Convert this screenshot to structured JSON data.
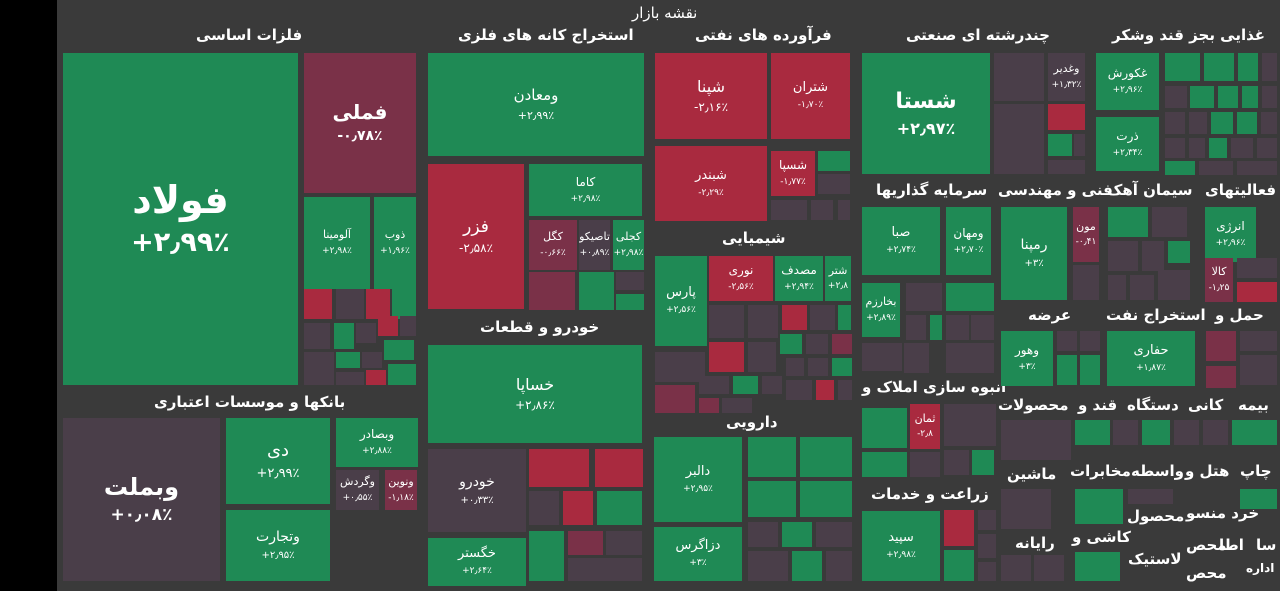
{
  "colors": {
    "green": "#1f8a55",
    "red": "#a92a3f",
    "dark": "#4a3e49",
    "darkred": "#7a3148",
    "background": "#3a3a3a"
  },
  "title": "نقشه بازار",
  "sections": [
    "فلزات اساسی",
    "استخراج کانه های فلزی",
    "فرآورده های نفتی",
    "چندرشته ای صنعتی",
    "غذایی بجز قند وشکر",
    "خودرو و قطعات",
    "شیمیایی",
    "سرمایه گذاریها",
    "فنی و مهندسی",
    "سیمان آهک",
    "فعالیتهای",
    "بانکها و موسسات اعتباری",
    "عرضه",
    "استخراج نفت",
    "حمل و",
    "انبوه سازی املاک و",
    "دارویی",
    "محصولات",
    "قند و",
    "دستگاه",
    "کانی",
    "بیمه",
    "زراعت و خدمات",
    "ماشین",
    "مخابرات",
    "واسطه",
    "هتل و",
    "چاپ",
    "محصول",
    "خرد منسو",
    "اطا",
    "سا",
    "محص",
    "رایانه",
    "کاشی و",
    "لاستیک",
    "محص",
    "اداره"
  ],
  "chart_data": {
    "type": "treemap",
    "title": "نقشه بازار",
    "tiles": [
      {
        "symbol": "فولاد",
        "change": "+۲٫۹۹٪",
        "value": 2.99,
        "sector": "فلزات اساسی"
      },
      {
        "symbol": "فملی",
        "change": "-۰٫۷۸٪",
        "value": -0.78,
        "sector": "فلزات اساسی"
      },
      {
        "symbol": "آلومینا",
        "change": "+۲٫۹۸٪",
        "value": 2.98,
        "sector": "فلزات اساسی"
      },
      {
        "symbol": "ذوب",
        "change": "+۱٫۹۶٪",
        "value": 1.96,
        "sector": "فلزات اساسی"
      },
      {
        "symbol": "ومعادن",
        "change": "+۲٫۹۹٪",
        "value": 2.99,
        "sector": "استخراج کانه های فلزی"
      },
      {
        "symbol": "فزر",
        "change": "-۲٫۵۸٪",
        "value": -2.58,
        "sector": "استخراج کانه های فلزی"
      },
      {
        "symbol": "کاما",
        "change": "+۲٫۹۸٪",
        "value": 2.98,
        "sector": "استخراج کانه های فلزی"
      },
      {
        "symbol": "کگل",
        "change": "-۰٫۶۶٪",
        "value": -0.66,
        "sector": "استخراج کانه های فلزی"
      },
      {
        "symbol": "تاصیکو",
        "change": "+۰٫۸۹٪",
        "value": 0.89,
        "sector": "استخراج کانه های فلزی"
      },
      {
        "symbol": "کجلی",
        "change": "+۲٫۹۸٪",
        "value": 2.98,
        "sector": "استخراج کانه های فلزی"
      },
      {
        "symbol": "شپنا",
        "change": "-۲٫۱۶٪",
        "value": -2.16,
        "sector": "فرآورده های نفتی"
      },
      {
        "symbol": "شتران",
        "change": "-۱٫۷۰٪",
        "value": -1.7,
        "sector": "فرآورده های نفتی"
      },
      {
        "symbol": "شبندر",
        "change": "-۲٫۲۹٪",
        "value": -2.29,
        "sector": "فرآورده های نفتی"
      },
      {
        "symbol": "شسپا",
        "change": "-۱٫۷۷٪",
        "value": -1.77,
        "sector": "فرآورده های نفتی"
      },
      {
        "symbol": "شستا",
        "change": "+۲٫۹۷٪",
        "value": 2.97,
        "sector": "چندرشته ای صنعتی"
      },
      {
        "symbol": "وغدیر",
        "change": "+۱٫۳۲٪",
        "value": 1.32,
        "sector": "چندرشته ای صنعتی"
      },
      {
        "symbol": "غکورش",
        "change": "+۲٫۹۶٪",
        "value": 2.96,
        "sector": "غذایی بجز قند وشکر"
      },
      {
        "symbol": "ذرت",
        "change": "+۲٫۳۴٪",
        "value": 2.34,
        "sector": "غذایی بجز قند وشکر"
      },
      {
        "symbol": "خساپا",
        "change": "+۲٫۸۶٪",
        "value": 2.86,
        "sector": "خودرو و قطعات"
      },
      {
        "symbol": "خودرو",
        "change": "+۰٫۳۳٪",
        "value": 0.33,
        "sector": "خودرو و قطعات"
      },
      {
        "symbol": "خگستر",
        "change": "+۲٫۶۴٪",
        "value": 2.64,
        "sector": "خودرو و قطعات"
      },
      {
        "symbol": "پارس",
        "change": "+۲٫۵۶٪",
        "value": 2.56,
        "sector": "شیمیایی"
      },
      {
        "symbol": "نوری",
        "change": "-۲٫۵۶٪",
        "value": -2.56,
        "sector": "شیمیایی"
      },
      {
        "symbol": "مصدف",
        "change": "+۲٫۹۴٪",
        "value": 2.94,
        "sector": "شیمیایی"
      },
      {
        "symbol": "شتر",
        "change": "+۲٫۸",
        "value": 2.8,
        "sector": "شیمیایی"
      },
      {
        "symbol": "صبا",
        "change": "+۲٫۷۴٪",
        "value": 2.74,
        "sector": "سرمایه گذاریها"
      },
      {
        "symbol": "ومهان",
        "change": "+۲٫۷۰٪",
        "value": 2.7,
        "sector": "سرمایه گذاریها"
      },
      {
        "symbol": "بخارزم",
        "change": "+۲٫۸۹٪",
        "value": 2.89,
        "sector": "سرمایه گذاریها"
      },
      {
        "symbol": "رمپنا",
        "change": "+۳٪",
        "value": 3.0,
        "sector": "فنی و مهندسی"
      },
      {
        "symbol": "مون",
        "change": "-۰٫۴۱",
        "value": -0.41,
        "sector": "فنی و مهندسی"
      },
      {
        "symbol": "انرژی",
        "change": "+۲٫۹۶٪",
        "value": 2.96,
        "sector": "فعالیتهای"
      },
      {
        "symbol": "کالا",
        "change": "-۱٫۲۵",
        "value": -1.25,
        "sector": "فعالیتهای"
      },
      {
        "symbol": "وبملت",
        "change": "+۰٫۰۸٪",
        "value": 0.08,
        "sector": "بانکها و موسسات اعتباری"
      },
      {
        "symbol": "دی",
        "change": "+۲٫۹۹٪",
        "value": 2.99,
        "sector": "بانکها و موسسات اعتباری"
      },
      {
        "symbol": "وتجارت",
        "change": "+۲٫۹۵٪",
        "value": 2.95,
        "sector": "بانکها و موسسات اعتباری"
      },
      {
        "symbol": "وبصادر",
        "change": "+۲٫۸۸٪",
        "value": 2.88,
        "sector": "بانکها و موسسات اعتباری"
      },
      {
        "symbol": "وگردش",
        "change": "+۰٫۵۵٪",
        "value": 0.55,
        "sector": "بانکها و موسسات اعتباری"
      },
      {
        "symbol": "ونوین",
        "change": "-۱٫۱۸٪",
        "value": -1.18,
        "sector": "بانکها و موسسات اعتباری"
      },
      {
        "symbol": "وهور",
        "change": "+۳٪",
        "value": 3.0,
        "sector": "عرضه"
      },
      {
        "symbol": "حفاری",
        "change": "+۱٫۸۷٪",
        "value": 1.87,
        "sector": "استخراج نفت"
      },
      {
        "symbol": "دالبر",
        "change": "+۲٫۹۵٪",
        "value": 2.95,
        "sector": "دارویی"
      },
      {
        "symbol": "دزاگرس",
        "change": "+۳٪",
        "value": 3.0,
        "sector": "دارویی"
      },
      {
        "symbol": "ثمان",
        "change": "-۲٫۸",
        "value": -2.8,
        "sector": "انبوه سازی املاک و"
      },
      {
        "symbol": "سپید",
        "change": "+۲٫۹۸٪",
        "value": 2.98,
        "sector": "زراعت و خدمات"
      }
    ]
  }
}
